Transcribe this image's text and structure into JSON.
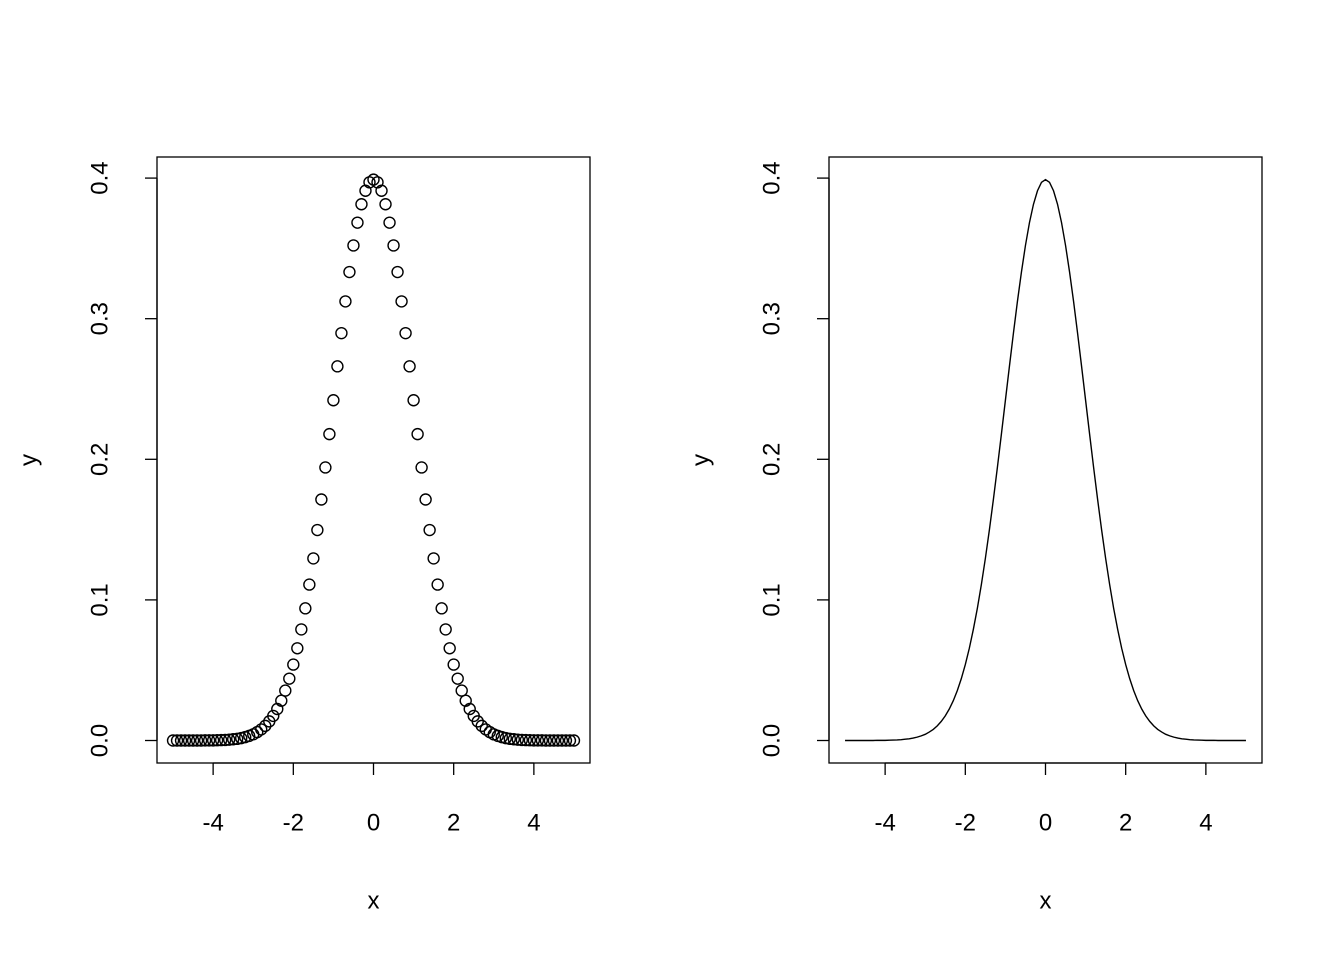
{
  "chart_data": [
    {
      "type": "scatter",
      "xlabel": "x",
      "ylabel": "y",
      "x": [
        -5,
        -4.9,
        -4.8,
        -4.7,
        -4.6,
        -4.5,
        -4.4,
        -4.3,
        -4.2,
        -4.1,
        -4,
        -3.9,
        -3.8,
        -3.7,
        -3.6,
        -3.5,
        -3.4,
        -3.3,
        -3.2,
        -3.1,
        -3,
        -2.9,
        -2.8,
        -2.7,
        -2.6,
        -2.5,
        -2.4,
        -2.3,
        -2.2,
        -2.1,
        -2,
        -1.9,
        -1.8,
        -1.7,
        -1.6,
        -1.5,
        -1.4,
        -1.3,
        -1.2,
        -1.1,
        -1,
        -0.9,
        -0.8,
        -0.7,
        -0.6,
        -0.5,
        -0.4,
        -0.3,
        -0.2,
        -0.1,
        0,
        0.1,
        0.2,
        0.3,
        0.4,
        0.5,
        0.6,
        0.7,
        0.8,
        0.9,
        1,
        1.1,
        1.2,
        1.3,
        1.4,
        1.5,
        1.6,
        1.7,
        1.8,
        1.9,
        2,
        2.1,
        2.2,
        2.3,
        2.4,
        2.5,
        2.6,
        2.7,
        2.8,
        2.9,
        3,
        3.1,
        3.2,
        3.3,
        3.4,
        3.5,
        3.6,
        3.7,
        3.8,
        3.9,
        4,
        4.1,
        4.2,
        4.3,
        4.4,
        4.5,
        4.6,
        4.7,
        4.8,
        4.9,
        5
      ],
      "values": [
        0,
        0,
        0,
        0,
        0,
        0,
        0,
        0,
        0.0001,
        0.0001,
        0.0001,
        0.0002,
        0.0003,
        0.0004,
        0.0006,
        0.0009,
        0.0012,
        0.0017,
        0.0024,
        0.0033,
        0.0044,
        0.006,
        0.0079,
        0.0104,
        0.0136,
        0.0175,
        0.0224,
        0.0283,
        0.0355,
        0.044,
        0.054,
        0.0656,
        0.079,
        0.094,
        0.1109,
        0.1295,
        0.1497,
        0.1714,
        0.1942,
        0.2179,
        0.242,
        0.2661,
        0.2897,
        0.3123,
        0.3332,
        0.3521,
        0.3683,
        0.3814,
        0.391,
        0.397,
        0.3989,
        0.397,
        0.391,
        0.3814,
        0.3683,
        0.3521,
        0.3332,
        0.3123,
        0.2897,
        0.2661,
        0.242,
        0.2179,
        0.1942,
        0.1714,
        0.1497,
        0.1295,
        0.1109,
        0.094,
        0.079,
        0.0656,
        0.054,
        0.044,
        0.0355,
        0.0283,
        0.0224,
        0.0175,
        0.0136,
        0.0104,
        0.0079,
        0.006,
        0.0044,
        0.0033,
        0.0024,
        0.0017,
        0.0012,
        0.0009,
        0.0006,
        0.0004,
        0.0003,
        0.0002,
        0.0001,
        0.0001,
        0.0001,
        0,
        0,
        0,
        0,
        0,
        0,
        0,
        0
      ],
      "color": "#000000",
      "xlim": [
        -5.4,
        5.4
      ],
      "xticks": [
        -4,
        -2,
        0,
        2,
        4
      ],
      "ylim": [
        -0.016,
        0.415
      ],
      "yticks": [
        {
          "value": 0,
          "label": "0.0"
        },
        0.1,
        0.2,
        0.3,
        0.4
      ]
    },
    {
      "type": "line",
      "xlabel": "x",
      "ylabel": "y",
      "x": [
        -5,
        -4.9,
        -4.8,
        -4.7,
        -4.6,
        -4.5,
        -4.4,
        -4.3,
        -4.2,
        -4.1,
        -4,
        -3.9,
        -3.8,
        -3.7,
        -3.6,
        -3.5,
        -3.4,
        -3.3,
        -3.2,
        -3.1,
        -3,
        -2.9,
        -2.8,
        -2.7,
        -2.6,
        -2.5,
        -2.4,
        -2.3,
        -2.2,
        -2.1,
        -2,
        -1.9,
        -1.8,
        -1.7,
        -1.6,
        -1.5,
        -1.4,
        -1.3,
        -1.2,
        -1.1,
        -1,
        -0.9,
        -0.8,
        -0.7,
        -0.6,
        -0.5,
        -0.4,
        -0.3,
        -0.2,
        -0.1,
        0,
        0.1,
        0.2,
        0.3,
        0.4,
        0.5,
        0.6,
        0.7,
        0.8,
        0.9,
        1,
        1.1,
        1.2,
        1.3,
        1.4,
        1.5,
        1.6,
        1.7,
        1.8,
        1.9,
        2,
        2.1,
        2.2,
        2.3,
        2.4,
        2.5,
        2.6,
        2.7,
        2.8,
        2.9,
        3,
        3.1,
        3.2,
        3.3,
        3.4,
        3.5,
        3.6,
        3.7,
        3.8,
        3.9,
        4,
        4.1,
        4.2,
        4.3,
        4.4,
        4.5,
        4.6,
        4.7,
        4.8,
        4.9,
        5
      ],
      "values": [
        0,
        0,
        0,
        0,
        0,
        0,
        0,
        0,
        0.0001,
        0.0001,
        0.0001,
        0.0002,
        0.0003,
        0.0004,
        0.0006,
        0.0009,
        0.0012,
        0.0017,
        0.0024,
        0.0033,
        0.0044,
        0.006,
        0.0079,
        0.0104,
        0.0136,
        0.0175,
        0.0224,
        0.0283,
        0.0355,
        0.044,
        0.054,
        0.0656,
        0.079,
        0.094,
        0.1109,
        0.1295,
        0.1497,
        0.1714,
        0.1942,
        0.2179,
        0.242,
        0.2661,
        0.2897,
        0.3123,
        0.3332,
        0.3521,
        0.3683,
        0.3814,
        0.391,
        0.397,
        0.3989,
        0.397,
        0.391,
        0.3814,
        0.3683,
        0.3521,
        0.3332,
        0.3123,
        0.2897,
        0.2661,
        0.242,
        0.2179,
        0.1942,
        0.1714,
        0.1497,
        0.1295,
        0.1109,
        0.094,
        0.079,
        0.0656,
        0.054,
        0.044,
        0.0355,
        0.0283,
        0.0224,
        0.0175,
        0.0136,
        0.0104,
        0.0079,
        0.006,
        0.0044,
        0.0033,
        0.0024,
        0.0017,
        0.0012,
        0.0009,
        0.0006,
        0.0004,
        0.0003,
        0.0002,
        0.0001,
        0.0001,
        0.0001,
        0,
        0,
        0,
        0,
        0,
        0,
        0,
        0
      ],
      "color": "#000000",
      "xlim": [
        -5.4,
        5.4
      ],
      "xticks": [
        -4,
        -2,
        0,
        2,
        4
      ],
      "ylim": [
        -0.016,
        0.415
      ],
      "yticks": [
        {
          "value": 0,
          "label": "0.0"
        },
        0.1,
        0.2,
        0.3,
        0.4
      ]
    }
  ]
}
